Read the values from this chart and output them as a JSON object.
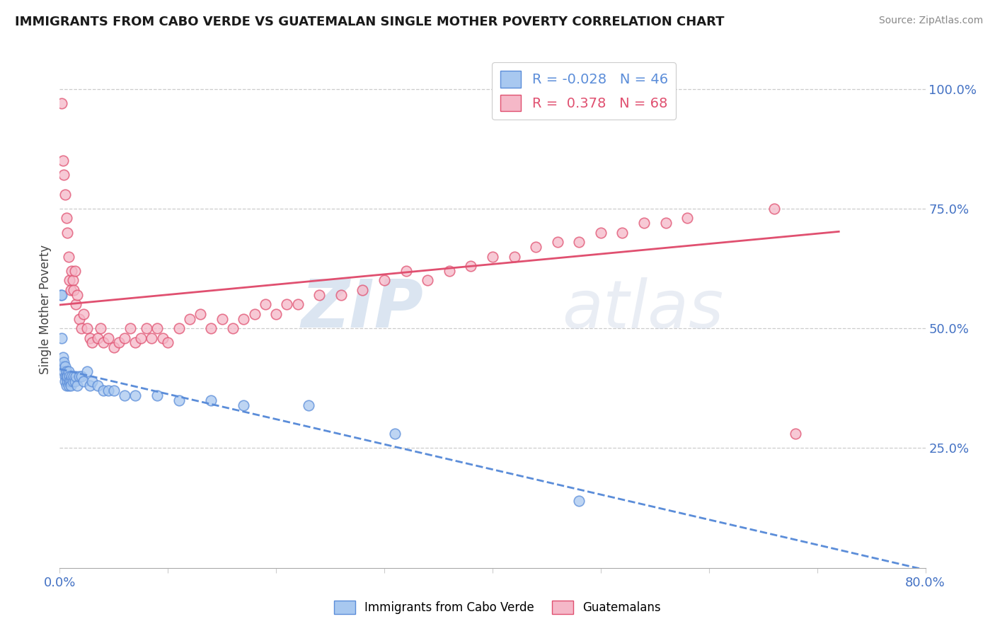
{
  "title": "IMMIGRANTS FROM CABO VERDE VS GUATEMALAN SINGLE MOTHER POVERTY CORRELATION CHART",
  "source_text": "Source: ZipAtlas.com",
  "ylabel": "Single Mother Poverty",
  "legend_labels": [
    "Immigrants from Cabo Verde",
    "Guatemalans"
  ],
  "r_cabo": -0.028,
  "n_cabo": 46,
  "r_guatemalan": 0.378,
  "n_guatemalan": 68,
  "xlim": [
    0.0,
    0.8
  ],
  "ylim": [
    0.0,
    1.08
  ],
  "yticks": [
    0.25,
    0.5,
    0.75,
    1.0
  ],
  "ytick_labels": [
    "25.0%",
    "50.0%",
    "75.0%",
    "100.0%"
  ],
  "xticks": [
    0.0,
    0.1,
    0.2,
    0.3,
    0.4,
    0.5,
    0.6,
    0.7,
    0.8
  ],
  "xtick_labels": [
    "0.0%",
    "",
    "",
    "",
    "",
    "",
    "",
    "",
    "80.0%"
  ],
  "color_cabo": "#a8c8f0",
  "color_guatemalan": "#f5b8c8",
  "color_cabo_line": "#5b8dd9",
  "color_guatemalan_line": "#e05070",
  "background_color": "#ffffff",
  "watermark_zip": "ZIP",
  "watermark_atlas": "atlas",
  "cabo_x": [
    0.001,
    0.002,
    0.002,
    0.003,
    0.003,
    0.004,
    0.004,
    0.005,
    0.005,
    0.005,
    0.006,
    0.006,
    0.006,
    0.007,
    0.007,
    0.008,
    0.008,
    0.009,
    0.009,
    0.01,
    0.01,
    0.011,
    0.012,
    0.013,
    0.014,
    0.015,
    0.016,
    0.018,
    0.02,
    0.022,
    0.025,
    0.028,
    0.03,
    0.035,
    0.04,
    0.045,
    0.05,
    0.06,
    0.07,
    0.09,
    0.11,
    0.14,
    0.17,
    0.23,
    0.31,
    0.48
  ],
  "cabo_y": [
    0.57,
    0.57,
    0.48,
    0.44,
    0.42,
    0.43,
    0.41,
    0.42,
    0.4,
    0.39,
    0.4,
    0.41,
    0.38,
    0.39,
    0.4,
    0.41,
    0.38,
    0.4,
    0.39,
    0.39,
    0.38,
    0.4,
    0.39,
    0.4,
    0.39,
    0.4,
    0.38,
    0.4,
    0.4,
    0.39,
    0.41,
    0.38,
    0.39,
    0.38,
    0.37,
    0.37,
    0.37,
    0.36,
    0.36,
    0.36,
    0.35,
    0.35,
    0.34,
    0.34,
    0.28,
    0.14
  ],
  "guatemalan_x": [
    0.002,
    0.003,
    0.004,
    0.005,
    0.006,
    0.007,
    0.008,
    0.009,
    0.01,
    0.011,
    0.012,
    0.013,
    0.014,
    0.015,
    0.016,
    0.018,
    0.02,
    0.022,
    0.025,
    0.028,
    0.03,
    0.035,
    0.038,
    0.04,
    0.045,
    0.05,
    0.055,
    0.06,
    0.065,
    0.07,
    0.075,
    0.08,
    0.085,
    0.09,
    0.095,
    0.1,
    0.11,
    0.12,
    0.13,
    0.14,
    0.15,
    0.16,
    0.17,
    0.18,
    0.19,
    0.2,
    0.21,
    0.22,
    0.24,
    0.26,
    0.28,
    0.3,
    0.32,
    0.34,
    0.36,
    0.38,
    0.4,
    0.42,
    0.44,
    0.46,
    0.48,
    0.5,
    0.52,
    0.54,
    0.56,
    0.58,
    0.66,
    0.68
  ],
  "guatemalan_y": [
    0.97,
    0.85,
    0.82,
    0.78,
    0.73,
    0.7,
    0.65,
    0.6,
    0.58,
    0.62,
    0.6,
    0.58,
    0.62,
    0.55,
    0.57,
    0.52,
    0.5,
    0.53,
    0.5,
    0.48,
    0.47,
    0.48,
    0.5,
    0.47,
    0.48,
    0.46,
    0.47,
    0.48,
    0.5,
    0.47,
    0.48,
    0.5,
    0.48,
    0.5,
    0.48,
    0.47,
    0.5,
    0.52,
    0.53,
    0.5,
    0.52,
    0.5,
    0.52,
    0.53,
    0.55,
    0.53,
    0.55,
    0.55,
    0.57,
    0.57,
    0.58,
    0.6,
    0.62,
    0.6,
    0.62,
    0.63,
    0.65,
    0.65,
    0.67,
    0.68,
    0.68,
    0.7,
    0.7,
    0.72,
    0.72,
    0.73,
    0.75,
    0.28
  ]
}
